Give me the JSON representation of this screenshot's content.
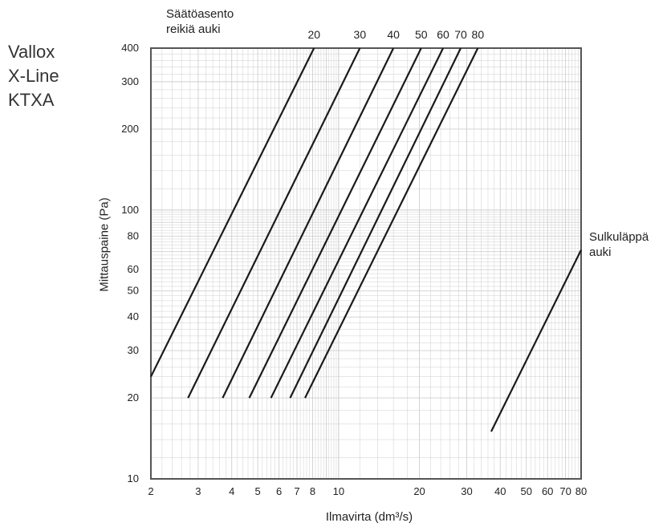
{
  "title_lines": [
    "Vallox",
    "X-Line",
    "KTXA"
  ],
  "legend_title_lines": [
    "Säätöasento",
    "reikiä auki"
  ],
  "closed_label_lines": [
    "Sulkuläppä",
    "auki"
  ],
  "xlabel": "Ilmavirta (dm³/s)",
  "ylabel": "Mittauspaine  (Pa)",
  "chart_data": {
    "type": "line",
    "x_scale": "log",
    "y_scale": "log",
    "xlim": [
      2,
      80
    ],
    "ylim": [
      10,
      400
    ],
    "grid": true,
    "x_ticks": [
      {
        "value": 2,
        "label": "2"
      },
      {
        "value": 3,
        "label": "3"
      },
      {
        "value": 4,
        "label": "4"
      },
      {
        "value": 5,
        "label": "5"
      },
      {
        "value": 6,
        "label": "6"
      },
      {
        "value": 7,
        "label": "7"
      },
      {
        "value": 8,
        "label": "8"
      },
      {
        "value": 10,
        "label": "10"
      },
      {
        "value": 20,
        "label": "20"
      },
      {
        "value": 30,
        "label": "30"
      },
      {
        "value": 40,
        "label": "40"
      },
      {
        "value": 50,
        "label": "50"
      },
      {
        "value": 60,
        "label": "60"
      },
      {
        "value": 70,
        "label": "70"
      },
      {
        "value": 80,
        "label": "80"
      }
    ],
    "y_ticks": [
      {
        "value": 10,
        "label": "10"
      },
      {
        "value": 20,
        "label": "20"
      },
      {
        "value": 30,
        "label": "30"
      },
      {
        "value": 40,
        "label": "40"
      },
      {
        "value": 50,
        "label": "50"
      },
      {
        "value": 60,
        "label": "60"
      },
      {
        "value": 80,
        "label": "80"
      },
      {
        "value": 100,
        "label": "100"
      },
      {
        "value": 200,
        "label": "200"
      },
      {
        "value": 300,
        "label": "300"
      },
      {
        "value": 400,
        "label": "400"
      }
    ],
    "series": [
      {
        "name": "20",
        "points": [
          [
            2.0,
            24
          ],
          [
            8.1,
            400
          ]
        ]
      },
      {
        "name": "30",
        "points": [
          [
            2.75,
            20
          ],
          [
            12.0,
            400
          ]
        ]
      },
      {
        "name": "40",
        "points": [
          [
            3.7,
            20
          ],
          [
            16.0,
            400
          ]
        ]
      },
      {
        "name": "50",
        "points": [
          [
            4.65,
            20
          ],
          [
            20.3,
            400
          ]
        ]
      },
      {
        "name": "60",
        "points": [
          [
            5.6,
            20
          ],
          [
            24.5,
            400
          ]
        ]
      },
      {
        "name": "70",
        "points": [
          [
            6.6,
            20
          ],
          [
            28.5,
            400
          ]
        ]
      },
      {
        "name": "80",
        "points": [
          [
            7.5,
            20
          ],
          [
            33.0,
            400
          ]
        ]
      },
      {
        "name": "Sulkuläppä auki",
        "points": [
          [
            37,
            15
          ],
          [
            80,
            71
          ]
        ]
      }
    ],
    "line_color": "#1a1a1a",
    "grid_color": "#cfcfcf",
    "frame_color": "#555555"
  }
}
